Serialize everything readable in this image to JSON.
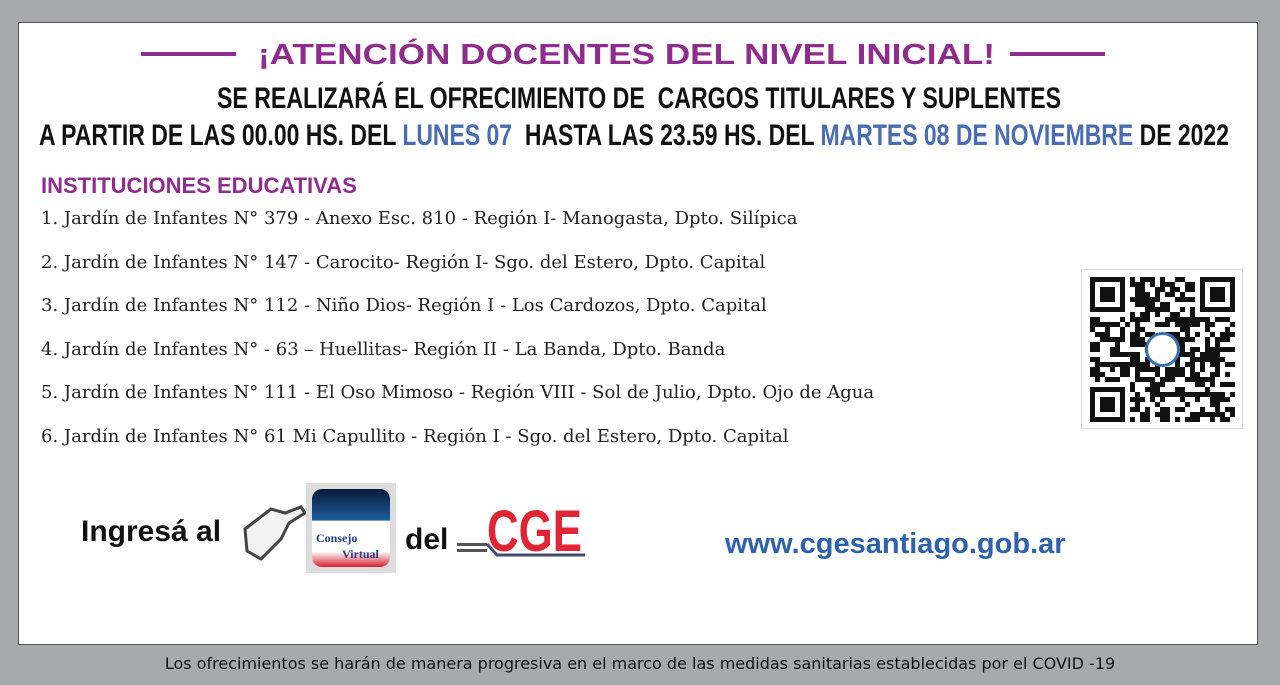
{
  "header": {
    "title": "¡ATENCIÓN DOCENTES DEL NIVEL INICIAL!",
    "line2": "SE REALIZARÁ EL OFRECIMIENTO DE  CARGOS TITULARES Y SUPLENTES",
    "line3_a": "A PARTIR DE LAS 00.00 HS. DEL ",
    "line3_b": "LUNES 07",
    "line3_c": "  HASTA LAS 23.59 HS. DEL ",
    "line3_d": "MARTES 08 DE NOVIEMBRE",
    "line3_e": " DE 2022"
  },
  "institutions": {
    "title": "INSTITUCIONES EDUCATIVAS",
    "items": [
      "1. Jardín de Infantes N° 379 - Anexo Esc. 810 - Región I-  Manogasta, Dpto. Silípica",
      "2. Jardín de Infantes N° 147 - Carocito- Región I-  Sgo. del Estero, Dpto. Capital",
      "3. Jardín de Infantes N° 112 - Niño Dios- Región I - Los Cardozos, Dpto. Capital",
      "4. Jardín de Infantes N° - 63 – Huellitas- Región II -  La Banda, Dpto. Banda",
      "5. Jardín de Infantes N° 111 - El Oso Mimoso - Región VIII - Sol de Julio, Dpto. Ojo de Agua",
      "6. Jardín de Infantes N° 61 Mi Capullito - Región I - Sgo. del Estero, Dpto. Capital"
    ]
  },
  "cta": {
    "ingresa": "Ingresá al",
    "consejo_line1": "Consejo",
    "consejo_line2": "Virtual",
    "del": "del",
    "cge_logo": "CGE",
    "url": "www.cgesantiago.gob.ar"
  },
  "footer": "Los ofrecimientos se harán de manera progresiva en el marco de las medidas sanitarias establecidas por el COVID -19",
  "colors": {
    "purple": "#8e2d8e",
    "blue": "#4a6cb3",
    "red": "#e02636",
    "background": "#a7a9ac"
  }
}
